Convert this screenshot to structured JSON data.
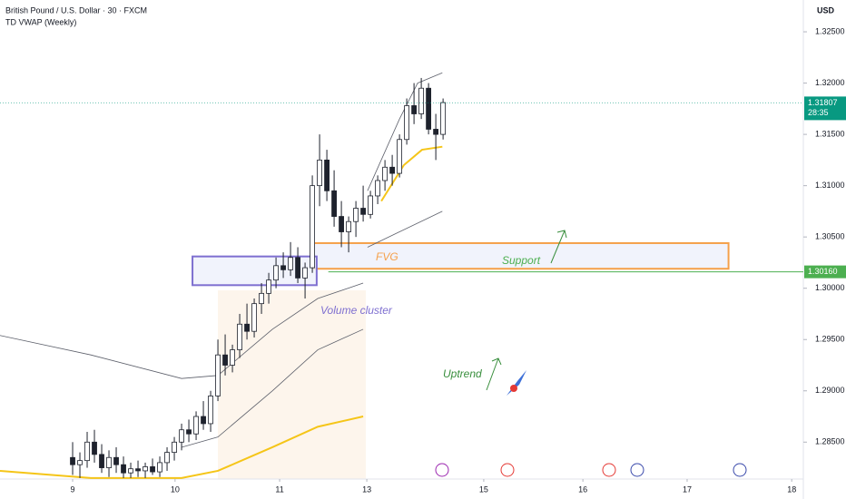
{
  "chart_data": {
    "type": "candlestick",
    "title": "British Pound / U.S. Dollar · 30 · FXCM",
    "indicator": "TD VWAP (Weekly)",
    "currency": "USD",
    "up_color": "#ffffff",
    "down_color": "#1e222d",
    "wick_color": "#1e222d",
    "x": [
      10,
      11,
      12,
      13,
      14,
      15,
      16,
      17,
      18,
      19,
      20,
      21,
      22,
      23,
      24,
      25,
      26,
      27,
      28,
      29,
      30,
      31,
      32,
      33,
      34,
      35,
      36,
      37,
      38,
      39,
      40,
      41,
      42,
      43,
      44,
      45,
      46,
      47,
      48,
      49,
      50,
      51,
      52,
      53,
      54,
      55,
      56,
      57,
      58,
      59,
      60,
      61
    ],
    "open": [
      1.2835,
      1.2828,
      1.2832,
      1.285,
      1.2838,
      1.2825,
      1.2835,
      1.2828,
      1.282,
      1.2824,
      1.2822,
      1.2826,
      1.2821,
      1.283,
      1.284,
      1.285,
      1.2862,
      1.2858,
      1.2875,
      1.2868,
      1.2895,
      1.2935,
      1.2925,
      1.294,
      1.2965,
      1.2958,
      1.2985,
      1.2995,
      1.3008,
      1.3022,
      1.3018,
      1.303,
      1.301,
      1.302,
      1.31,
      1.3125,
      1.3095,
      1.307,
      1.3055,
      1.3065,
      1.3078,
      1.3072,
      1.309,
      1.3105,
      1.3118,
      1.3112,
      1.3145,
      1.3178,
      1.317,
      1.3195,
      1.3155,
      1.315
    ],
    "high": [
      1.285,
      1.284,
      1.286,
      1.2862,
      1.2848,
      1.2842,
      1.2845,
      1.2836,
      1.283,
      1.2832,
      1.283,
      1.2834,
      1.2836,
      1.2845,
      1.2855,
      1.2868,
      1.2872,
      1.288,
      1.289,
      1.29,
      1.295,
      1.2955,
      1.2945,
      1.2975,
      1.2985,
      1.299,
      1.3005,
      1.3015,
      1.303,
      1.3035,
      1.3045,
      1.304,
      1.3025,
      1.311,
      1.315,
      1.3135,
      1.3115,
      1.3085,
      1.307,
      1.3085,
      1.31,
      1.3095,
      1.311,
      1.3125,
      1.313,
      1.315,
      1.3185,
      1.32,
      1.3205,
      1.32,
      1.317,
      1.3185
    ],
    "low": [
      1.2818,
      1.2815,
      1.2825,
      1.283,
      1.282,
      1.2816,
      1.282,
      1.2815,
      1.2815,
      1.2816,
      1.2815,
      1.2818,
      1.2816,
      1.2822,
      1.2832,
      1.2842,
      1.285,
      1.2852,
      1.2862,
      1.286,
      1.289,
      1.2915,
      1.2918,
      1.2932,
      1.295,
      1.2952,
      1.2975,
      1.2985,
      1.3,
      1.301,
      1.3012,
      1.3005,
      1.299,
      1.3015,
      1.308,
      1.3085,
      1.306,
      1.304,
      1.3035,
      1.305,
      1.3065,
      1.3068,
      1.3082,
      1.3095,
      1.31,
      1.3108,
      1.314,
      1.316,
      1.3165,
      1.315,
      1.3125,
      1.3145
    ],
    "close": [
      1.2828,
      1.2832,
      1.285,
      1.2838,
      1.2825,
      1.2835,
      1.2828,
      1.282,
      1.2824,
      1.2822,
      1.2826,
      1.2821,
      1.283,
      1.284,
      1.285,
      1.2862,
      1.2858,
      1.2875,
      1.2868,
      1.2895,
      1.2935,
      1.2925,
      1.294,
      1.2965,
      1.2958,
      1.2985,
      1.2995,
      1.3008,
      1.3022,
      1.3018,
      1.303,
      1.301,
      1.302,
      1.31,
      1.3125,
      1.3095,
      1.307,
      1.3055,
      1.3065,
      1.3078,
      1.3072,
      1.309,
      1.3105,
      1.3118,
      1.3112,
      1.3145,
      1.3178,
      1.317,
      1.3195,
      1.3155,
      1.315,
      1.3181
    ],
    "lines": [
      {
        "color": "#5d606b",
        "x": [
          0,
          12.5,
          25,
          30,
          37.5,
          43.75,
          50
        ],
        "values": [
          1.2954,
          1.2935,
          1.2912,
          1.2915,
          1.296,
          1.299,
          1.3005
        ]
      },
      {
        "color": "#5d606b",
        "x": [
          25,
          30,
          37.5,
          43.75,
          50
        ],
        "values": [
          1.2845,
          1.2855,
          1.29,
          1.294,
          1.296
        ]
      },
      {
        "color": "#f5c518",
        "x": [
          0,
          12.5,
          25,
          30,
          37.5,
          43.75,
          50
        ],
        "values": [
          1.2822,
          1.2815,
          1.2815,
          1.2822,
          1.2845,
          1.2865,
          1.2875
        ]
      },
      {
        "color": "#5d606b",
        "x": [
          50.6,
          55,
          57.5,
          60.9
        ],
        "values": [
          1.3095,
          1.3165,
          1.32,
          1.321
        ]
      },
      {
        "color": "#5d606b",
        "x": [
          50.6,
          55,
          60.9
        ],
        "values": [
          1.304,
          1.3055,
          1.3075
        ]
      },
      {
        "color": "#f5c518",
        "x": [
          52.5,
          55.6,
          58.1,
          60.9
        ],
        "values": [
          1.3085,
          1.312,
          1.3135,
          1.3138
        ]
      }
    ],
    "zones": [
      {
        "name": "FVG",
        "color": "#f5a04a",
        "x": [
          43.1,
          100.3
        ],
        "y": [
          1.3019,
          1.3044
        ]
      },
      {
        "name": "Volume cluster",
        "color": "#7e6fd0",
        "x": [
          26.5,
          43.6
        ],
        "y": [
          1.3003,
          1.3031
        ]
      }
    ],
    "support": {
      "name": "Support",
      "color": "#4caf50",
      "value": 1.3016,
      "label": "1.30160",
      "x": 45.2
    },
    "annotation": "Uptrend",
    "last_price": {
      "value": 1.31807,
      "label": "1.31807",
      "countdown": "28:35",
      "color": "#089981"
    },
    "xlim": [
      0,
      110.6
    ],
    "xticks": [
      {
        "value": 10,
        "label": "9"
      },
      {
        "value": 24.1,
        "label": "10"
      },
      {
        "value": 38.5,
        "label": "11"
      },
      {
        "value": 50.5,
        "label": "13"
      },
      {
        "value": 66.6,
        "label": "15"
      },
      {
        "value": 80.25,
        "label": "16"
      },
      {
        "value": 94.6,
        "label": "17"
      },
      {
        "value": 109,
        "label": "18"
      }
    ],
    "ylim": [
      1.2814,
      1.3281
    ],
    "yticks": [
      {
        "value": 1.285,
        "label": "1.28500"
      },
      {
        "value": 1.29,
        "label": "1.29000"
      },
      {
        "value": 1.295,
        "label": "1.29500"
      },
      {
        "value": 1.3,
        "label": "1.30000"
      },
      {
        "value": 1.305,
        "label": "1.30500"
      },
      {
        "value": 1.31,
        "label": "1.31000"
      },
      {
        "value": 1.315,
        "label": "1.31500"
      },
      {
        "value": 1.32,
        "label": "1.32000"
      },
      {
        "value": 1.325,
        "label": "1.32500"
      }
    ]
  }
}
